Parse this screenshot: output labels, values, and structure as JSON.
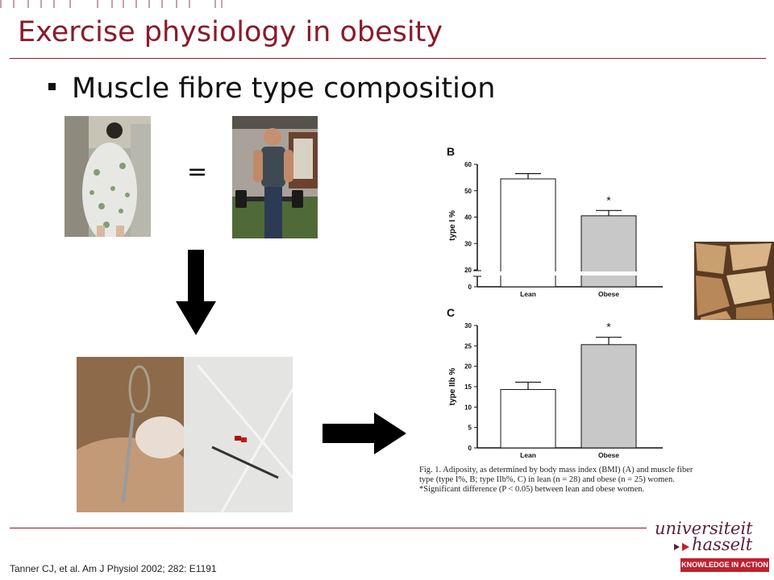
{
  "slide": {
    "title": "Exercise physiology in obesity",
    "bullet": "Muscle fibre type composition",
    "equals": "=",
    "reference": "Tanner  CJ, et al. Am J Physiol 2002; 282: E1191"
  },
  "logo": {
    "line1": "universiteit",
    "line2": "hasselt",
    "tagline": "KNOWLEDGE IN ACTION"
  },
  "caption": "Fig. 1. Adiposity, as determined by body mass index (BMI) (A) and muscle fiber type (type I%, B; type IIb%, C) in lean (n = 28) and obese (n = 25) women. *Significant difference (P < 0.05) between lean and obese women.",
  "chart_data": [
    {
      "type": "bar",
      "panel_label": "B",
      "categories": [
        "Lean",
        "Obese"
      ],
      "values": [
        54.5,
        40.5
      ],
      "errors": [
        2.0,
        2.0
      ],
      "significance": [
        "",
        "*"
      ],
      "ylabel": "type I %",
      "yticks": [
        0,
        20,
        30,
        40,
        50,
        60
      ],
      "ylim": [
        0,
        60
      ],
      "broken_axis": [
        0,
        20
      ],
      "colors": [
        "#ffffff",
        "#c8c8c8"
      ]
    },
    {
      "type": "bar",
      "panel_label": "C",
      "categories": [
        "Lean",
        "Obese"
      ],
      "values": [
        14.3,
        25.3
      ],
      "errors": [
        1.8,
        1.8
      ],
      "significance": [
        "",
        "*"
      ],
      "ylabel": "type IIb %",
      "yticks": [
        0,
        5,
        10,
        15,
        20,
        25,
        30
      ],
      "ylim": [
        0,
        30
      ],
      "colors": [
        "#ffffff",
        "#c8c8c8"
      ]
    }
  ]
}
